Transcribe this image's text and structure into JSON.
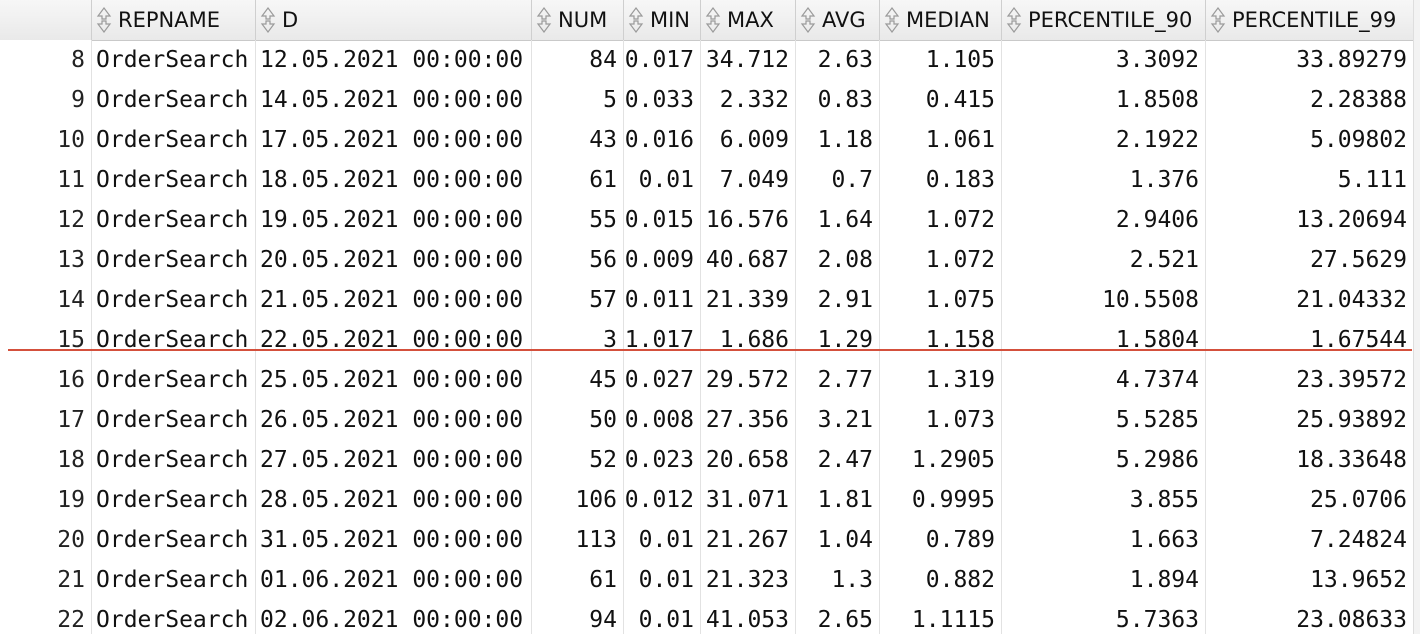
{
  "columns": [
    {
      "key": "rownum",
      "label": ""
    },
    {
      "key": "repname",
      "label": "REPNAME"
    },
    {
      "key": "d",
      "label": "D"
    },
    {
      "key": "num",
      "label": "NUM"
    },
    {
      "key": "min",
      "label": "MIN"
    },
    {
      "key": "max",
      "label": "MAX"
    },
    {
      "key": "avg",
      "label": "AVG"
    },
    {
      "key": "median",
      "label": "MEDIAN"
    },
    {
      "key": "p90",
      "label": "PERCENTILE_90"
    },
    {
      "key": "p99",
      "label": "PERCENTILE_99"
    }
  ],
  "sort_icon": "sort-arrows-icon",
  "accent_colors": {
    "split_line": "#d4503c"
  },
  "rows": [
    {
      "rownum": "8",
      "repname": "OrderSearch",
      "d": "12.05.2021 00:00:00",
      "num": "84",
      "min": "0.017",
      "max": "34.712",
      "avg": "2.63",
      "median": "1.105",
      "p90": "3.3092",
      "p99": "33.89279"
    },
    {
      "rownum": "9",
      "repname": "OrderSearch",
      "d": "14.05.2021 00:00:00",
      "num": "5",
      "min": "0.033",
      "max": "2.332",
      "avg": "0.83",
      "median": "0.415",
      "p90": "1.8508",
      "p99": "2.28388"
    },
    {
      "rownum": "10",
      "repname": "OrderSearch",
      "d": "17.05.2021 00:00:00",
      "num": "43",
      "min": "0.016",
      "max": "6.009",
      "avg": "1.18",
      "median": "1.061",
      "p90": "2.1922",
      "p99": "5.09802"
    },
    {
      "rownum": "11",
      "repname": "OrderSearch",
      "d": "18.05.2021 00:00:00",
      "num": "61",
      "min": "0.01",
      "max": "7.049",
      "avg": "0.7",
      "median": "0.183",
      "p90": "1.376",
      "p99": "5.111"
    },
    {
      "rownum": "12",
      "repname": "OrderSearch",
      "d": "19.05.2021 00:00:00",
      "num": "55",
      "min": "0.015",
      "max": "16.576",
      "avg": "1.64",
      "median": "1.072",
      "p90": "2.9406",
      "p99": "13.20694"
    },
    {
      "rownum": "13",
      "repname": "OrderSearch",
      "d": "20.05.2021 00:00:00",
      "num": "56",
      "min": "0.009",
      "max": "40.687",
      "avg": "2.08",
      "median": "1.072",
      "p90": "2.521",
      "p99": "27.5629"
    },
    {
      "rownum": "14",
      "repname": "OrderSearch",
      "d": "21.05.2021 00:00:00",
      "num": "57",
      "min": "0.011",
      "max": "21.339",
      "avg": "2.91",
      "median": "1.075",
      "p90": "10.5508",
      "p99": "21.04332"
    },
    {
      "rownum": "15",
      "repname": "OrderSearch",
      "d": "22.05.2021 00:00:00",
      "num": "3",
      "min": "1.017",
      "max": "1.686",
      "avg": "1.29",
      "median": "1.158",
      "p90": "1.5804",
      "p99": "1.67544"
    },
    {
      "rownum": "16",
      "repname": "OrderSearch",
      "d": "25.05.2021 00:00:00",
      "num": "45",
      "min": "0.027",
      "max": "29.572",
      "avg": "2.77",
      "median": "1.319",
      "p90": "4.7374",
      "p99": "23.39572"
    },
    {
      "rownum": "17",
      "repname": "OrderSearch",
      "d": "26.05.2021 00:00:00",
      "num": "50",
      "min": "0.008",
      "max": "27.356",
      "avg": "3.21",
      "median": "1.073",
      "p90": "5.5285",
      "p99": "25.93892"
    },
    {
      "rownum": "18",
      "repname": "OrderSearch",
      "d": "27.05.2021 00:00:00",
      "num": "52",
      "min": "0.023",
      "max": "20.658",
      "avg": "2.47",
      "median": "1.2905",
      "p90": "5.2986",
      "p99": "18.33648"
    },
    {
      "rownum": "19",
      "repname": "OrderSearch",
      "d": "28.05.2021 00:00:00",
      "num": "106",
      "min": "0.012",
      "max": "31.071",
      "avg": "1.81",
      "median": "0.9995",
      "p90": "3.855",
      "p99": "25.0706"
    },
    {
      "rownum": "20",
      "repname": "OrderSearch",
      "d": "31.05.2021 00:00:00",
      "num": "113",
      "min": "0.01",
      "max": "21.267",
      "avg": "1.04",
      "median": "0.789",
      "p90": "1.663",
      "p99": "7.24824"
    },
    {
      "rownum": "21",
      "repname": "OrderSearch",
      "d": "01.06.2021 00:00:00",
      "num": "61",
      "min": "0.01",
      "max": "21.323",
      "avg": "1.3",
      "median": "0.882",
      "p90": "1.894",
      "p99": "13.9652"
    },
    {
      "rownum": "22",
      "repname": "OrderSearch",
      "d": "02.06.2021 00:00:00",
      "num": "94",
      "min": "0.01",
      "max": "41.053",
      "avg": "2.65",
      "median": "1.1115",
      "p90": "5.7363",
      "p99": "23.08633"
    }
  ]
}
